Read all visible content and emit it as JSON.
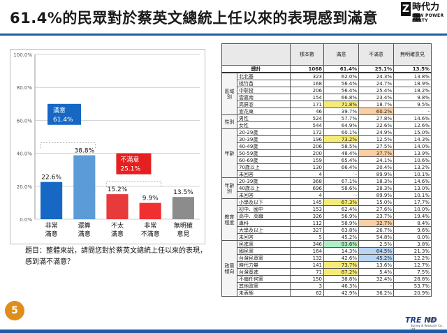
{
  "title": "61.4%的民眾對於蔡英文總統上任以來的表現感到滿意",
  "logo": {
    "mark": "Z",
    "name": "時代力量",
    "english": "NEW POWER PARTY"
  },
  "page_number": "5",
  "question": "題目：整體來說，請問您對於蔡英文總統上任以來的表現，感到滿不滿意？",
  "colors": {
    "accent": "#1d5ba8",
    "badge": "#e08e1a"
  },
  "chart_data": {
    "type": "bar",
    "categories": [
      "非常\n滿意",
      "還算\n滿意",
      "不太\n滿意",
      "非常\n不滿意",
      "無明確\n意見"
    ],
    "values": [
      22.6,
      38.8,
      15.2,
      9.9,
      13.5
    ],
    "value_labels": [
      "22.6%",
      "38.8%",
      "15.2%",
      "9.9%",
      "13.5%"
    ],
    "colors": [
      "#1668c4",
      "#5b9bd8",
      "#e83a3a",
      "#f03030",
      "#8c8c8c"
    ],
    "ylim": [
      0,
      100
    ],
    "yticks": [
      "0.0%",
      "20.0%",
      "40.0%",
      "60.0%",
      "80.0%",
      "100.0%"
    ],
    "yticks_values": [
      0,
      20,
      40,
      60,
      80,
      100
    ],
    "grid": true,
    "annotations": [
      {
        "text": "滿意",
        "value": "61.4%",
        "color": "#1668c4"
      },
      {
        "text": "不滿意",
        "value": "25.1%",
        "color": "#e62020"
      }
    ]
  },
  "table": {
    "headers": [
      "",
      "",
      "樣本數",
      "滿意",
      "不滿意",
      "無明確意見"
    ],
    "total": {
      "label": "總計",
      "n": "1068",
      "sat": "61.4%",
      "dis": "25.1%",
      "none": "13.5%"
    },
    "groups": [
      {
        "name": "區域別",
        "rows": [
          [
            "北北基",
            "323",
            "62.0%",
            "24.3%",
            "13.8%",
            ""
          ],
          [
            "桃竹苗",
            "168",
            "56.4%",
            "24.7%",
            "18.9%",
            ""
          ],
          [
            "中彰投",
            "206",
            "56.4%",
            "25.4%",
            "18.2%",
            ""
          ],
          [
            "雲嘉南",
            "154",
            "66.8%",
            "23.4%",
            "9.8%",
            ""
          ],
          [
            "高屏澎",
            "171",
            "71.8%",
            "18.7%",
            "9.5%",
            "y"
          ],
          [
            "宜花東",
            "46",
            "39.7%",
            "60.2%",
            "-",
            "y2"
          ]
        ]
      },
      {
        "name": "性別",
        "rows": [
          [
            "男性",
            "524",
            "57.7%",
            "27.8%",
            "14.6%",
            ""
          ],
          [
            "女性",
            "544",
            "64.9%",
            "22.6%",
            "12.6%",
            ""
          ]
        ]
      },
      {
        "name": "年齡",
        "rows": [
          [
            "20-29歲",
            "172",
            "60.1%",
            "24.9%",
            "15.0%",
            ""
          ],
          [
            "30-39歲",
            "196",
            "73.2%",
            "12.5%",
            "14.3%",
            "y"
          ],
          [
            "40-49歲",
            "206",
            "58.5%",
            "27.5%",
            "14.0%",
            ""
          ],
          [
            "50-59歲",
            "200",
            "48.4%",
            "37.7%",
            "13.9%",
            "y2"
          ],
          [
            "60-69歲",
            "159",
            "65.4%",
            "24.1%",
            "10.6%",
            ""
          ],
          [
            "70歲以上",
            "130",
            "66.4%",
            "20.4%",
            "13.2%",
            ""
          ],
          [
            "未回答",
            "4",
            "-",
            "89.9%",
            "10.1%",
            ""
          ]
        ]
      },
      {
        "name": "年齡別",
        "rows": [
          [
            "20-39歲",
            "368",
            "67.1%",
            "18.3%",
            "14.6%",
            ""
          ],
          [
            "40歲以上",
            "696",
            "58.6%",
            "28.3%",
            "13.0%",
            ""
          ],
          [
            "未回答",
            "4",
            "-",
            "89.9%",
            "10.1%",
            ""
          ]
        ]
      },
      {
        "name": "教育程度",
        "rows": [
          [
            "小學及以下",
            "145",
            "67.3%",
            "15.0%",
            "17.7%",
            "y"
          ],
          [
            "初中、國中",
            "153",
            "62.4%",
            "27.6%",
            "10.0%",
            ""
          ],
          [
            "高中、高職",
            "326",
            "56.9%",
            "23.7%",
            "19.4%",
            ""
          ],
          [
            "專科",
            "112",
            "58.9%",
            "32.7%",
            "8.4%",
            "y2"
          ],
          [
            "大學及以上",
            "327",
            "63.8%",
            "26.7%",
            "9.6%",
            ""
          ],
          [
            "未回答",
            "5",
            "45.2%",
            "54.8%",
            "0.0%",
            ""
          ]
        ]
      },
      {
        "name": "政黨傾向",
        "rows": [
          [
            "民進黨",
            "346",
            "93.6%",
            "2.5%",
            "3.8%",
            "g"
          ],
          [
            "國民黨",
            "164",
            "14.3%",
            "64.5%",
            "21.3%",
            "b"
          ],
          [
            "台灣民眾黨",
            "132",
            "42.6%",
            "45.2%",
            "12.2%",
            "b2"
          ],
          [
            "時代力量",
            "141",
            "73.7%",
            "13.6%",
            "12.7%",
            "y"
          ],
          [
            "台灣基進",
            "71",
            "87.2%",
            "5.4%",
            "7.5%",
            "o"
          ],
          [
            "不偏任何黨",
            "150",
            "38.8%",
            "32.4%",
            "28.8%",
            ""
          ],
          [
            "其他政黨",
            "3",
            "46.3%",
            "-",
            "53.7%",
            ""
          ],
          [
            "未表態",
            "62",
            "42.9%",
            "36.2%",
            "20.9%",
            ""
          ]
        ]
      }
    ]
  },
  "footer": {
    "brand": "TRE ND",
    "brand_tw": "趨勢",
    "brand_en": "Survey & Research Co., Ltd"
  }
}
